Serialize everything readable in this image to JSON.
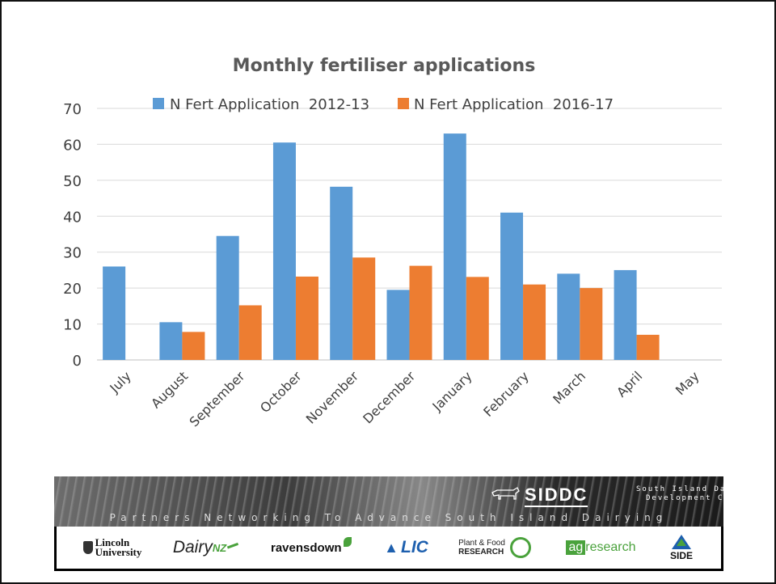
{
  "chart_data": {
    "type": "bar",
    "title": "Monthly fertiliser applications",
    "categories": [
      "July",
      "August",
      "September",
      "October",
      "November",
      "December",
      "January",
      "February",
      "March",
      "April",
      "May"
    ],
    "series": [
      {
        "name": "N Fert Application  2012-13",
        "color": "#5b9bd5",
        "values": [
          26,
          10.5,
          34.5,
          60.5,
          48.2,
          19.5,
          63,
          41,
          24,
          25,
          null
        ]
      },
      {
        "name": "N Fert Application  2016-17",
        "color": "#ed7d31",
        "values": [
          null,
          7.8,
          15.2,
          23.2,
          28.5,
          26.2,
          23.1,
          21,
          20,
          7,
          null
        ]
      }
    ],
    "ylim": [
      0,
      70
    ],
    "yticks": [
      0,
      10,
      20,
      30,
      40,
      50,
      60,
      70
    ],
    "xlabel": "",
    "ylabel": "",
    "grid": true,
    "legend_position": "top"
  },
  "banner": {
    "org_name": "SIDDC",
    "org_full_line1": "South Island Dairying",
    "org_full_line2": "Development Centre",
    "tagline": "Partners Networking To Advance South Island Dairying",
    "partners": {
      "lincoln_line1": "Lincoln",
      "lincoln_line2": "University",
      "dairynz_main": "Dairy",
      "dairynz_suffix": "NZ",
      "ravensdown": "ravensdown",
      "lic": "LIC",
      "pfr_line1": "Plant & Food",
      "pfr_line2": "RESEARCH",
      "agresearch_prefix": "ag",
      "agresearch_suffix": "research",
      "side": "SIDE"
    }
  }
}
